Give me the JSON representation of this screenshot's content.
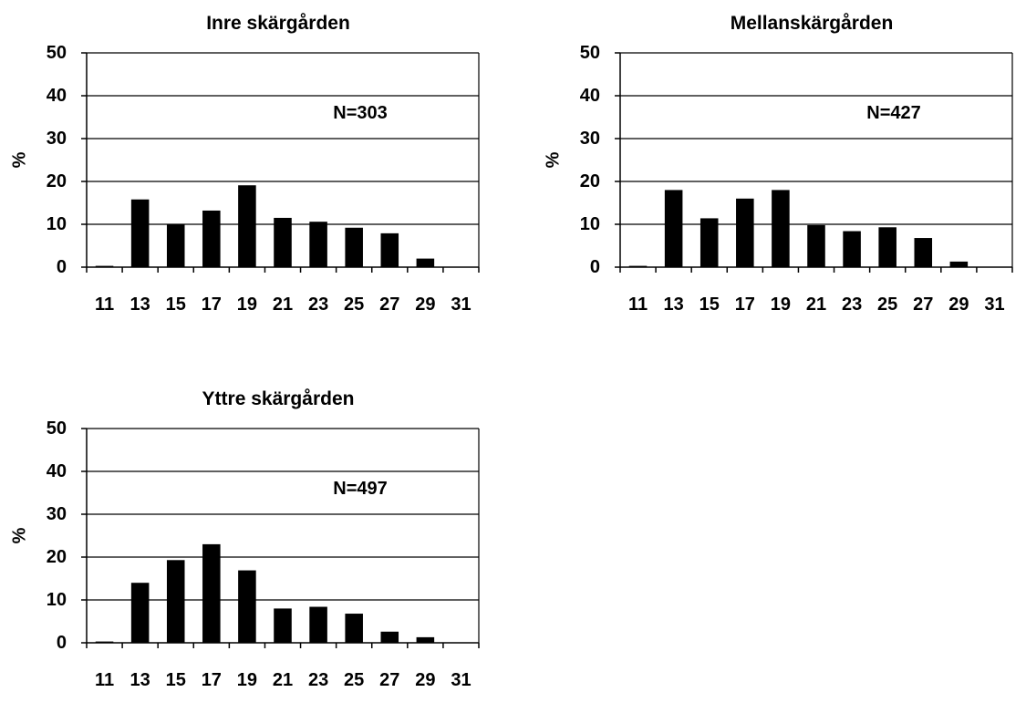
{
  "chart_data": [
    {
      "type": "bar",
      "title": "Inre skärgården",
      "ylabel": "%",
      "xlabel": "",
      "annotation": "N=303",
      "ylim": [
        0,
        50
      ],
      "yticks": [
        "0",
        "10",
        "20",
        "30",
        "40",
        "50"
      ],
      "categories": [
        "11",
        "13",
        "15",
        "17",
        "19",
        "21",
        "23",
        "25",
        "27",
        "29",
        "31"
      ],
      "values": [
        0.3,
        15.8,
        9.9,
        13.2,
        19.1,
        11.5,
        10.6,
        9.2,
        7.9,
        2.0,
        0
      ],
      "grid": true,
      "bar_color": "#000000"
    },
    {
      "type": "bar",
      "title": "Mellanskärgården",
      "ylabel": "%",
      "xlabel": "",
      "annotation": "N=427",
      "ylim": [
        0,
        50
      ],
      "yticks": [
        "0",
        "10",
        "20",
        "30",
        "40",
        "50"
      ],
      "categories": [
        "11",
        "13",
        "15",
        "17",
        "19",
        "21",
        "23",
        "25",
        "27",
        "29",
        "31"
      ],
      "values": [
        0.3,
        18.0,
        11.4,
        16.0,
        18.0,
        9.8,
        8.4,
        9.3,
        6.8,
        1.3,
        0
      ],
      "grid": true,
      "bar_color": "#000000"
    },
    {
      "type": "bar",
      "title": "Yttre skärgården",
      "ylabel": "%",
      "xlabel": "",
      "annotation": "N=497",
      "ylim": [
        0,
        50
      ],
      "yticks": [
        "0",
        "10",
        "20",
        "30",
        "40",
        "50"
      ],
      "categories": [
        "11",
        "13",
        "15",
        "17",
        "19",
        "21",
        "23",
        "25",
        "27",
        "29",
        "31"
      ],
      "values": [
        0.3,
        14.0,
        19.3,
        23.0,
        16.9,
        8.0,
        8.4,
        6.8,
        2.6,
        1.3,
        0
      ],
      "grid": true,
      "bar_color": "#000000"
    }
  ]
}
